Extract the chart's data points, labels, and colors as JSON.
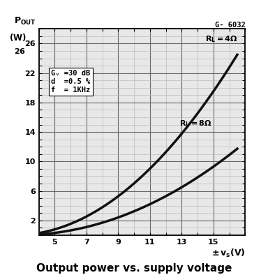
{
  "title_top": "G- 6032",
  "title_bottom": "Output power vs. supply voltage",
  "annotation_line1": "Gᵥ =30 dB",
  "annotation_line2": "d  =0.5 %",
  "annotation_line3": "f  = 1KHz",
  "label_4ohm": "R_L = 4Ω",
  "label_8ohm": "R_L = 8Ω",
  "x_start": 4.0,
  "x_end": 16.5,
  "vdrop_4": 2.5,
  "vdrop_8": 2.8,
  "rl_4": 4.0,
  "rl_8": 8.0,
  "x_ticks": [
    5,
    7,
    9,
    11,
    13,
    15
  ],
  "y_ticks": [
    2,
    6,
    10,
    14,
    18,
    22,
    26
  ],
  "xlim": [
    4,
    17
  ],
  "ylim": [
    0,
    28
  ],
  "bg_color": "#e8e8e8",
  "line_color": "#111111",
  "grid_minor_color": "#bbbbbb",
  "grid_major_color": "#666666"
}
